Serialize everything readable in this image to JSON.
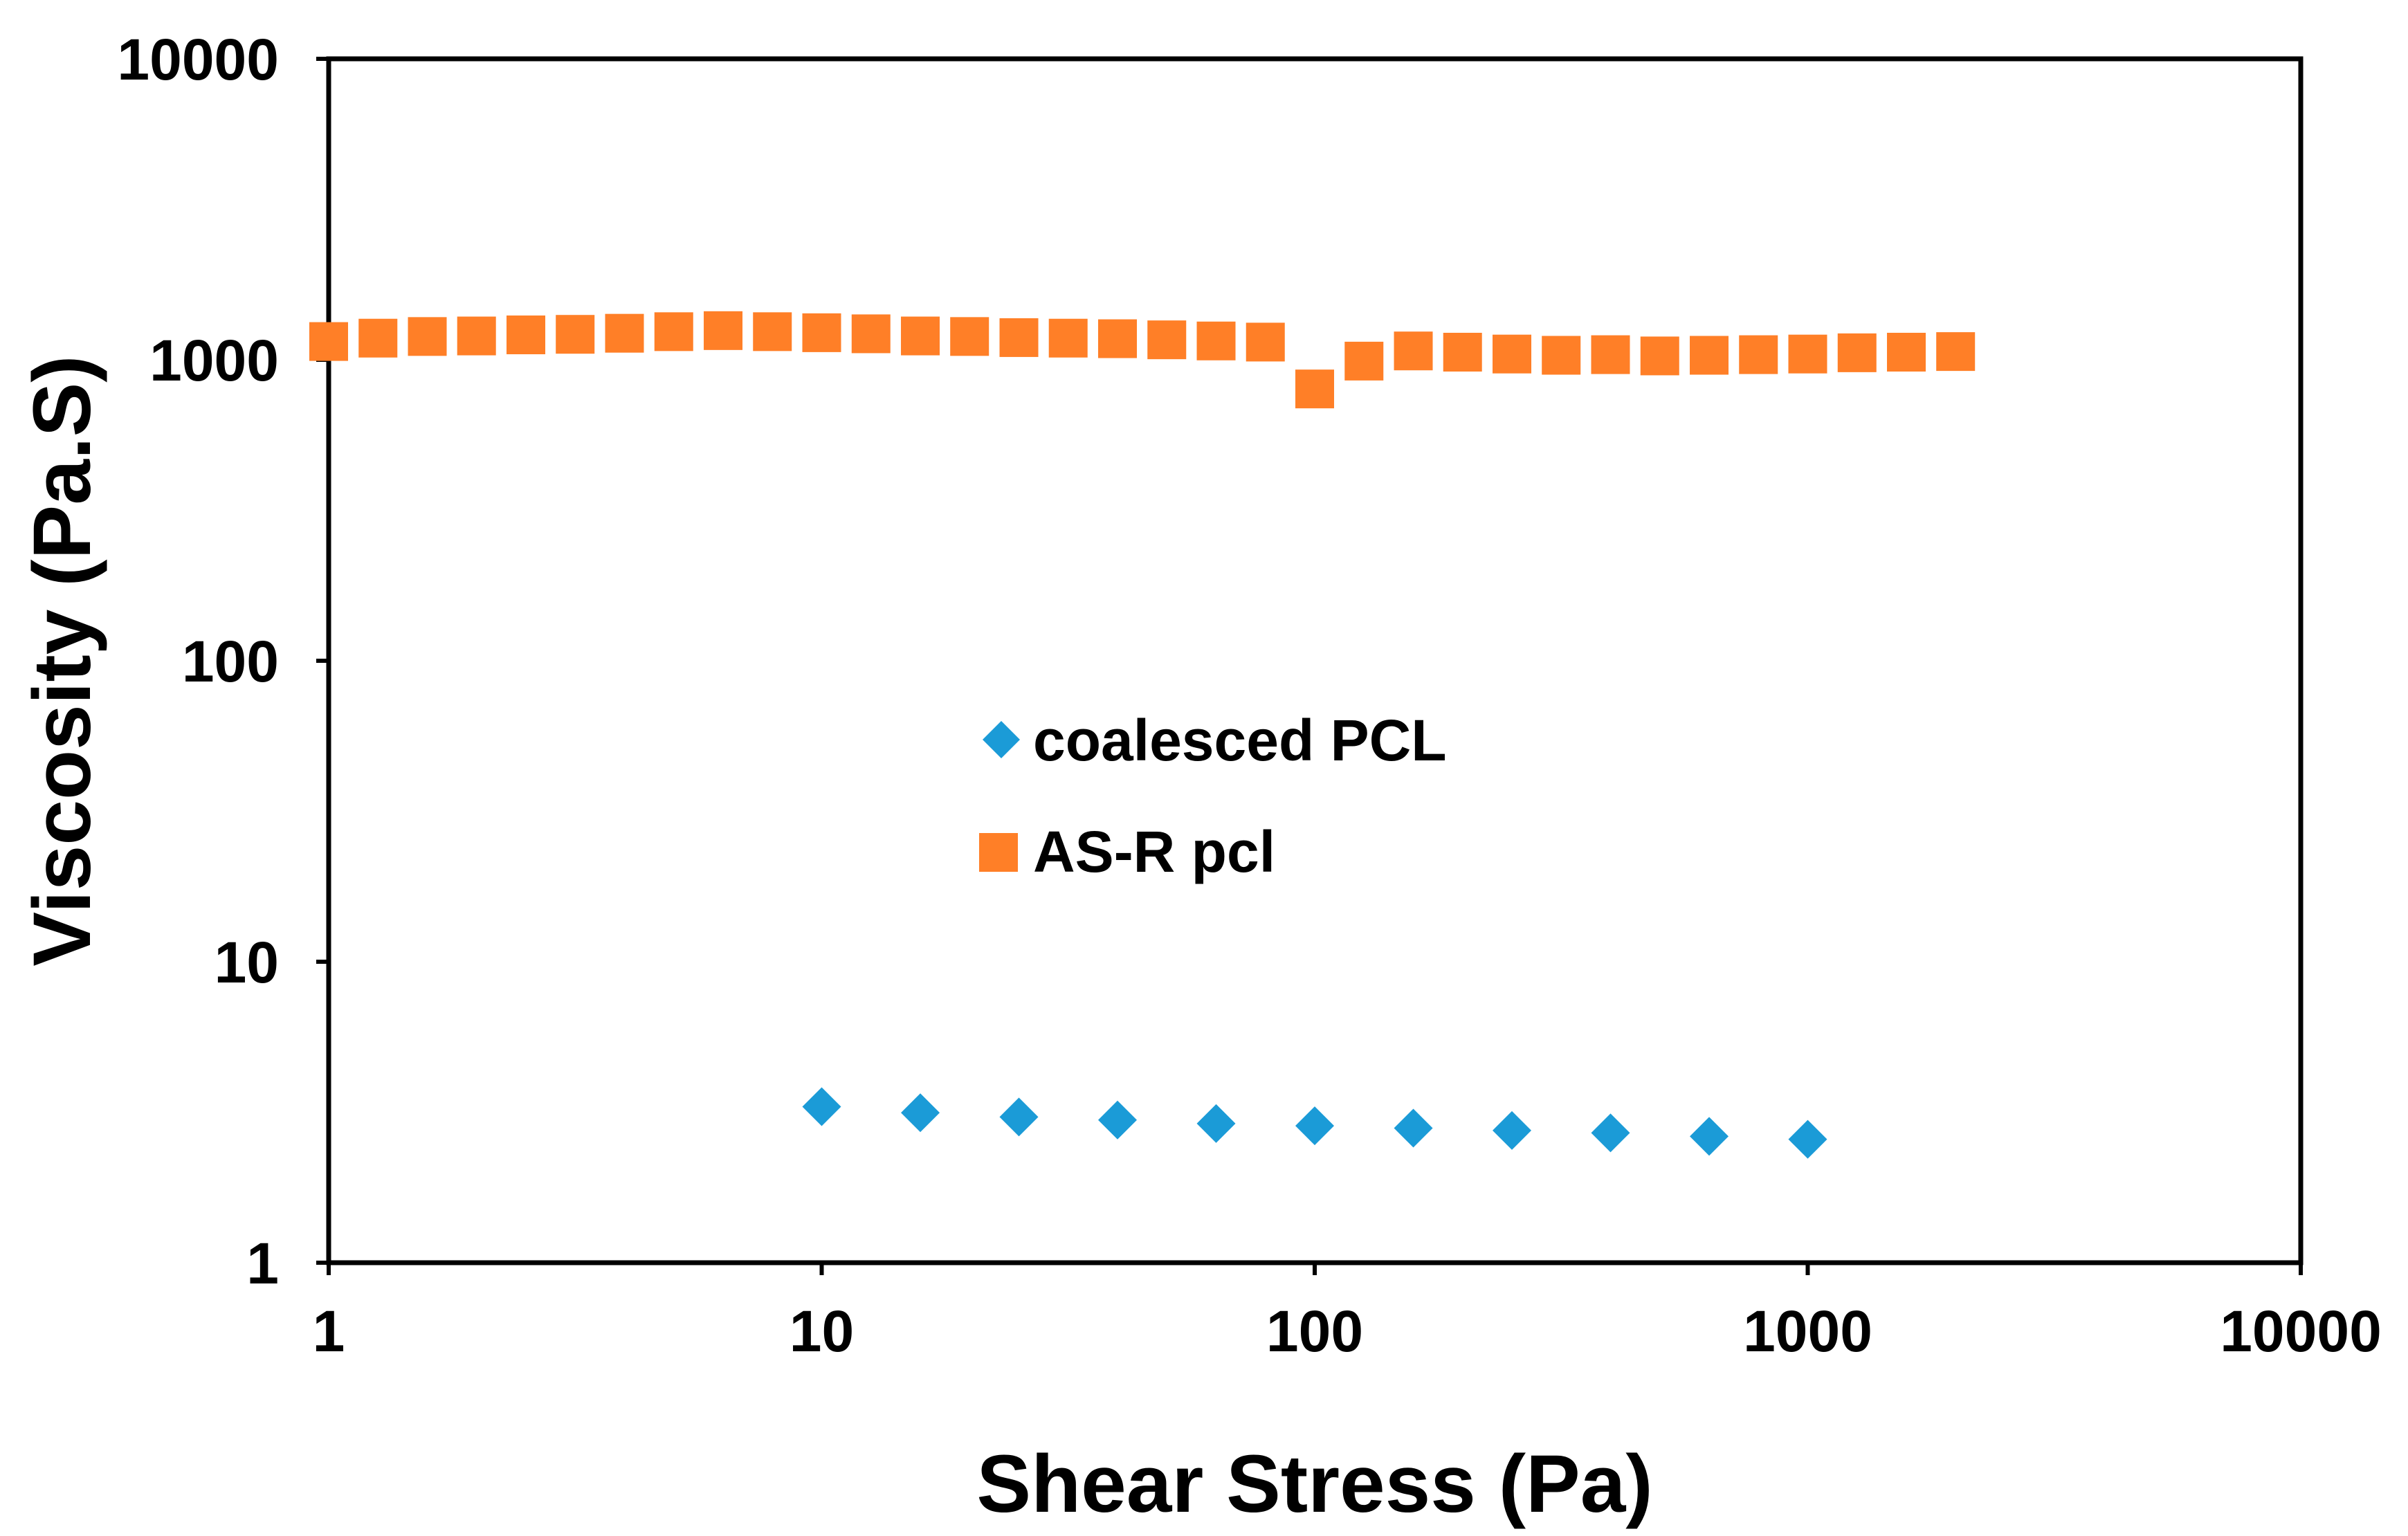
{
  "chart_data": {
    "type": "scatter",
    "title": "",
    "xlabel": "Shear Stress (Pa)",
    "ylabel": "Viscosity (Pa.S)",
    "xscale": "log",
    "yscale": "log",
    "xlim": [
      1,
      10000
    ],
    "ylim": [
      1,
      10000
    ],
    "x_ticks": [
      1,
      10,
      100,
      1000,
      10000
    ],
    "x_tick_labels": [
      "1",
      "10",
      "100",
      "1000",
      "10000"
    ],
    "y_ticks": [
      1,
      10,
      100,
      1000,
      10000
    ],
    "y_tick_labels": [
      "1",
      "10",
      "100",
      "1000",
      "10000"
    ],
    "grid": false,
    "legend_position": "center",
    "series": [
      {
        "name": "coalesced PCL",
        "marker": "diamond",
        "color": "#1B9BD7",
        "x": [
          10,
          15.85,
          25.12,
          39.81,
          63.1,
          100,
          158.5,
          251.2,
          398.1,
          631,
          1000
        ],
        "y": [
          3.3,
          3.15,
          3.05,
          2.98,
          2.9,
          2.85,
          2.8,
          2.75,
          2.7,
          2.63,
          2.57
        ]
      },
      {
        "name": "AS-R pcl",
        "marker": "square",
        "color": "#FF7F27",
        "x": [
          1,
          1.259,
          1.585,
          1.995,
          2.512,
          3.162,
          3.981,
          5.012,
          6.31,
          7.943,
          10,
          12.59,
          15.85,
          19.95,
          25.12,
          31.62,
          39.81,
          50.12,
          63.1,
          79.43,
          100,
          125.9,
          158.5,
          199.5,
          251.2,
          316.2,
          398.1,
          501.2,
          631,
          794.3,
          1000,
          1259,
          1585,
          1995
        ],
        "y": [
          1150,
          1180,
          1195,
          1200,
          1210,
          1215,
          1225,
          1240,
          1250,
          1240,
          1230,
          1220,
          1200,
          1195,
          1185,
          1180,
          1175,
          1165,
          1155,
          1145,
          800,
          990,
          1070,
          1060,
          1045,
          1035,
          1040,
          1030,
          1035,
          1040,
          1045,
          1055,
          1060,
          1065
        ]
      }
    ]
  }
}
